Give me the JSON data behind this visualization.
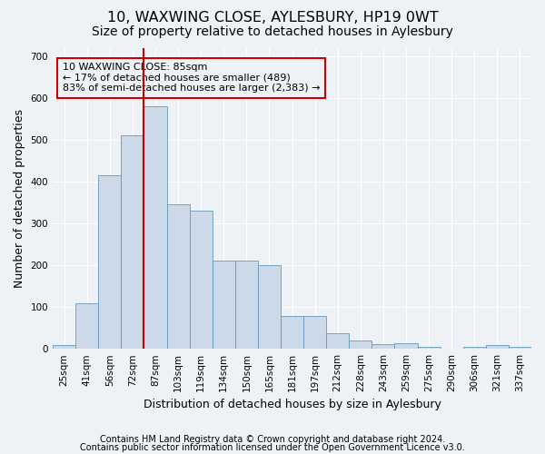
{
  "title": "10, WAXWING CLOSE, AYLESBURY, HP19 0WT",
  "subtitle": "Size of property relative to detached houses in Aylesbury",
  "xlabel": "Distribution of detached houses by size in Aylesbury",
  "ylabel": "Number of detached properties",
  "bar_labels": [
    "25sqm",
    "41sqm",
    "56sqm",
    "72sqm",
    "87sqm",
    "103sqm",
    "119sqm",
    "134sqm",
    "150sqm",
    "165sqm",
    "181sqm",
    "197sqm",
    "212sqm",
    "228sqm",
    "243sqm",
    "259sqm",
    "275sqm",
    "290sqm",
    "306sqm",
    "321sqm",
    "337sqm"
  ],
  "bar_values": [
    8,
    110,
    415,
    510,
    580,
    345,
    330,
    210,
    210,
    200,
    78,
    78,
    37,
    20,
    12,
    14,
    4,
    0,
    5,
    8,
    5
  ],
  "bar_color": "#ccd9e8",
  "bar_edge_color": "#6699bb",
  "vline_x_index": 4,
  "vline_color": "#cc0000",
  "annotation_text": "10 WAXWING CLOSE: 85sqm\n← 17% of detached houses are smaller (489)\n83% of semi-detached houses are larger (2,383) →",
  "annotation_box_color": "#cc0000",
  "footer1": "Contains HM Land Registry data © Crown copyright and database right 2024.",
  "footer2": "Contains public sector information licensed under the Open Government Licence v3.0.",
  "ylim": [
    0,
    720
  ],
  "yticks": [
    0,
    100,
    200,
    300,
    400,
    500,
    600,
    700
  ],
  "background_color": "#eef2f7",
  "grid_color": "#ffffff",
  "title_fontsize": 11.5,
  "subtitle_fontsize": 10,
  "axis_label_fontsize": 9,
  "tick_fontsize": 7.5,
  "footer_fontsize": 7
}
